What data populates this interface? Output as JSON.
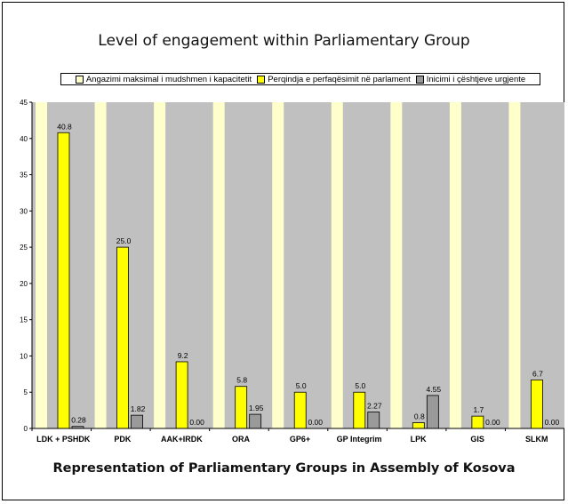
{
  "chart_data": {
    "type": "bar",
    "title": "Level of engagement within Parliamentary Group",
    "xlabel": "Representation of Parliamentary Groups in Assembly of Kosova",
    "ylabel": "",
    "ylim": [
      0,
      45
    ],
    "yticks": [
      "0",
      "5",
      "10",
      "15",
      "20",
      "25",
      "30",
      "35",
      "40",
      "45"
    ],
    "categories": [
      "LDK + PSHDK",
      "PDK",
      "AAK+IRDK",
      "ORA",
      "GP6+",
      "GP Integrim",
      "LPK",
      "GIS",
      "SLKM"
    ],
    "legend_position": "top",
    "series": [
      {
        "name": "Angazimi maksimal i mudshmen i kapacitetit",
        "color": "#ffffcc",
        "values": [
          45,
          45,
          45,
          45,
          45,
          45,
          45,
          45,
          45
        ],
        "labels": [
          "",
          "",
          "",
          "",
          "",
          "",
          "",
          "",
          ""
        ]
      },
      {
        "name": "Perqindja e perfaqësimit në parlament",
        "color": "#ffff00",
        "values": [
          40.8,
          25.0,
          9.2,
          5.8,
          5.0,
          5.0,
          0.8,
          1.7,
          6.7
        ],
        "labels": [
          "40.8",
          "25.0",
          "9.2",
          "5.8",
          "5.0",
          "5.0",
          "0.8",
          "1.7",
          "6.7"
        ]
      },
      {
        "name": "Inicimi i çështjeve urgjente",
        "color": "#9a9a9a",
        "values": [
          0.28,
          1.82,
          0.0,
          1.95,
          0.0,
          2.27,
          4.55,
          0.0,
          0.0
        ],
        "labels": [
          "0.28",
          "1.82",
          "0.00",
          "1.95",
          "0.00",
          "2.27",
          "4.55",
          "0.00",
          "0.00"
        ]
      }
    ]
  }
}
